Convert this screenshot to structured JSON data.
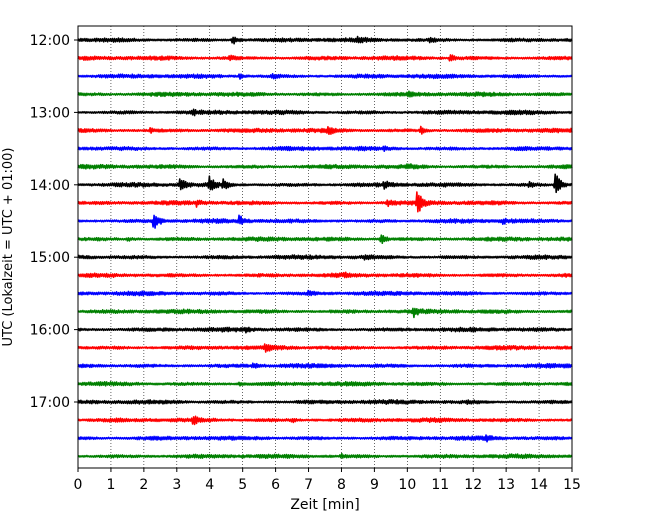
{
  "chart_data": {
    "type": "line",
    "title": "",
    "xlabel": "Zeit  [min]",
    "ylabel": "UTC (Lokalzeit = UTC + 01:00)",
    "xlim": [
      0,
      15
    ],
    "x_ticks": [
      "0",
      "1",
      "2",
      "3",
      "4",
      "5",
      "6",
      "7",
      "8",
      "9",
      "10",
      "11",
      "12",
      "13",
      "14",
      "15"
    ],
    "y_ticks": [
      {
        "label": "12:00",
        "trace_index": 0
      },
      {
        "label": "13:00",
        "trace_index": 4
      },
      {
        "label": "14:00",
        "trace_index": 8
      },
      {
        "label": "15:00",
        "trace_index": 12
      },
      {
        "label": "16:00",
        "trace_index": 16
      },
      {
        "label": "17:00",
        "trace_index": 20
      }
    ],
    "grid": "vertical-dotted",
    "trace_interval_min": 15,
    "colors": [
      "#000000",
      "#ff0000",
      "#0000ff",
      "#008000"
    ],
    "traces": [
      {
        "start": "12:00",
        "events": [
          {
            "t": 4.7,
            "amp": 1.8
          },
          {
            "t": 8.5,
            "amp": 0.8
          },
          {
            "t": 10.7,
            "amp": 0.9
          }
        ]
      },
      {
        "start": "12:15",
        "events": [
          {
            "t": 11.3,
            "amp": 1.3
          },
          {
            "t": 4.6,
            "amp": 0.8
          }
        ]
      },
      {
        "start": "12:30",
        "events": [
          {
            "t": 4.9,
            "amp": 0.8
          },
          {
            "t": 5.9,
            "amp": 0.8
          }
        ]
      },
      {
        "start": "12:45",
        "events": [
          {
            "t": 10.0,
            "amp": 0.7
          }
        ]
      },
      {
        "start": "13:00",
        "events": [
          {
            "t": 3.5,
            "amp": 0.6
          }
        ]
      },
      {
        "start": "13:15",
        "events": [
          {
            "t": 7.6,
            "amp": 1.1
          },
          {
            "t": 10.4,
            "amp": 1.4
          },
          {
            "t": 2.2,
            "amp": 0.6
          }
        ]
      },
      {
        "start": "13:30",
        "events": [
          {
            "t": 9.3,
            "amp": 0.6
          }
        ]
      },
      {
        "start": "13:45",
        "events": [
          {
            "t": 10.0,
            "amp": 0.6
          }
        ]
      },
      {
        "start": "14:00",
        "events": [
          {
            "t": 3.1,
            "amp": 3.2
          },
          {
            "t": 4.0,
            "amp": 3.0
          },
          {
            "t": 4.4,
            "amp": 1.8
          },
          {
            "t": 9.3,
            "amp": 1.3
          },
          {
            "t": 13.7,
            "amp": 0.9
          },
          {
            "t": 14.5,
            "amp": 4.5
          }
        ]
      },
      {
        "start": "14:15",
        "events": [
          {
            "t": 10.3,
            "amp": 3.8
          },
          {
            "t": 9.4,
            "amp": 1.2
          },
          {
            "t": 3.6,
            "amp": 0.9
          }
        ]
      },
      {
        "start": "14:30",
        "events": [
          {
            "t": 2.3,
            "amp": 3.8
          },
          {
            "t": 4.9,
            "amp": 1.6
          },
          {
            "t": 12.9,
            "amp": 0.8
          }
        ]
      },
      {
        "start": "14:45",
        "events": [
          {
            "t": 9.2,
            "amp": 1.8
          },
          {
            "t": 1.5,
            "amp": 0.8
          }
        ]
      },
      {
        "start": "15:00",
        "events": [
          {
            "t": 8.7,
            "amp": 0.7
          }
        ]
      },
      {
        "start": "15:15",
        "events": [
          {
            "t": 8.1,
            "amp": 0.6
          }
        ]
      },
      {
        "start": "15:30",
        "events": [
          {
            "t": 7.0,
            "amp": 0.6
          }
        ]
      },
      {
        "start": "15:45",
        "events": [
          {
            "t": 10.2,
            "amp": 1.3
          }
        ]
      },
      {
        "start": "16:00",
        "events": [
          {
            "t": 5.1,
            "amp": 0.7
          }
        ]
      },
      {
        "start": "16:15",
        "events": [
          {
            "t": 5.7,
            "amp": 1.3
          }
        ]
      },
      {
        "start": "16:30",
        "events": [
          {
            "t": 5.3,
            "amp": 0.8
          }
        ]
      },
      {
        "start": "16:45",
        "events": [
          {
            "t": 4.9,
            "amp": 0.6
          }
        ]
      },
      {
        "start": "17:00",
        "events": [
          {
            "t": 11.8,
            "amp": 0.6
          }
        ]
      },
      {
        "start": "17:15",
        "events": [
          {
            "t": 3.5,
            "amp": 1.2
          },
          {
            "t": 6.5,
            "amp": 0.6
          }
        ]
      },
      {
        "start": "17:30",
        "events": [
          {
            "t": 12.4,
            "amp": 0.7
          }
        ]
      },
      {
        "start": "17:45",
        "events": [
          {
            "t": 8.0,
            "amp": 0.5
          }
        ]
      }
    ]
  }
}
